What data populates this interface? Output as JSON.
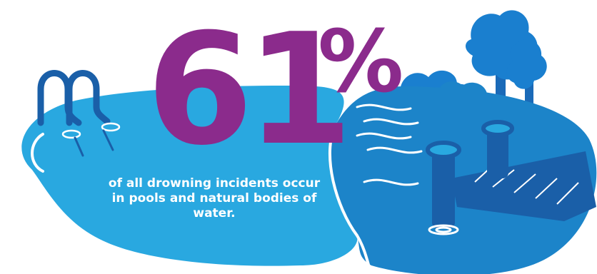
{
  "stat": {
    "number": "61",
    "unit": "%",
    "caption": "of all drowning incidents occur in pools and natural bodies of water."
  },
  "colors": {
    "accent": "#8b2b8c",
    "pool_light": "#29a8e0",
    "water_dark": "#1c84c9",
    "deep_blue": "#1a5fa8",
    "trees": "#1a7fcf",
    "text_on_water": "#ffffff"
  },
  "icons": [
    "pool-ladder-icon",
    "tree-icon",
    "bush-icon",
    "dock-icon",
    "water-ripple-icon"
  ]
}
